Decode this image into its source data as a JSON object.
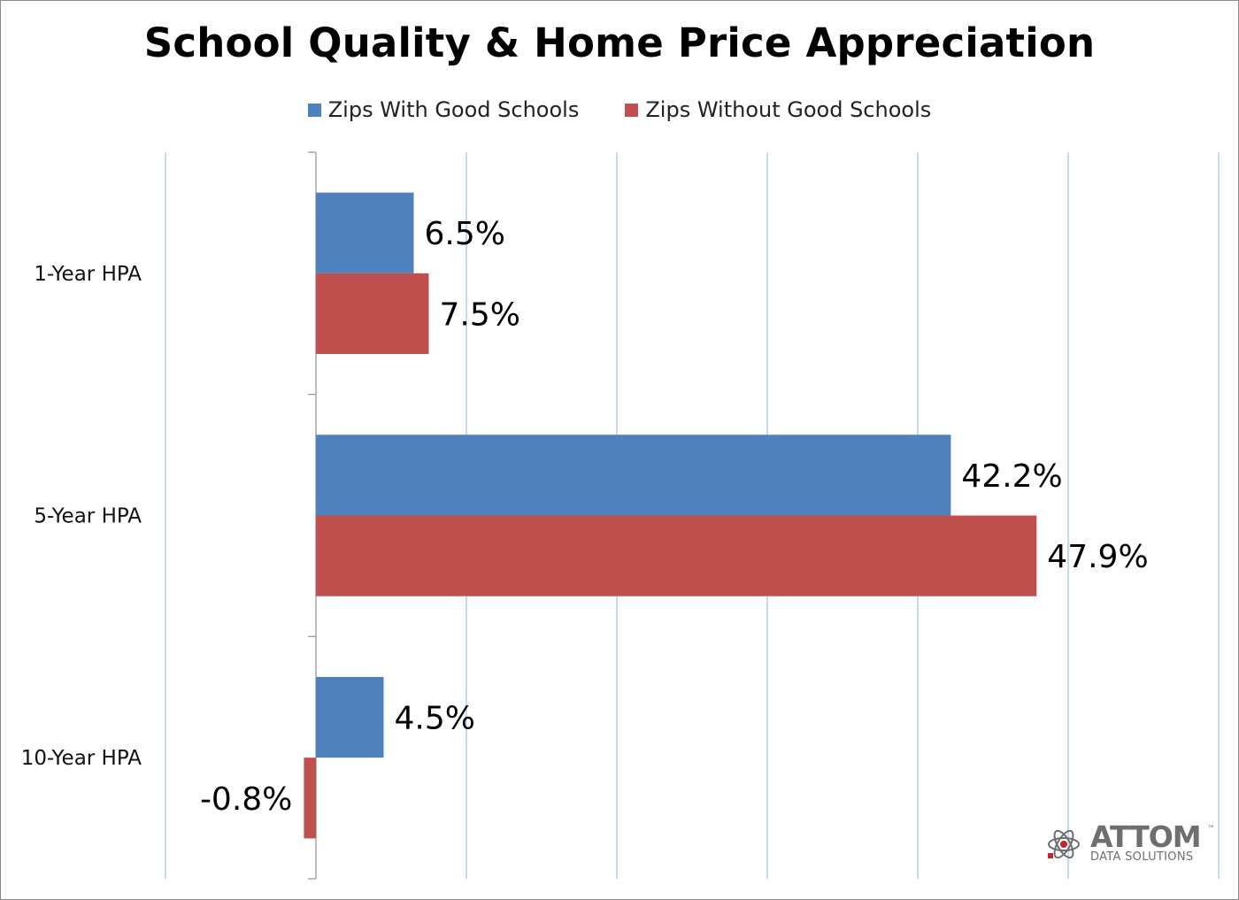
{
  "chart_data": {
    "type": "bar",
    "orientation": "horizontal",
    "title": "School Quality & Home Price Appreciation",
    "categories": [
      "1-Year HPA",
      "5-Year HPA",
      "10-Year HPA"
    ],
    "series": [
      {
        "name": "Zips With Good Schools",
        "color": "#4f81bd",
        "values": [
          6.5,
          42.2,
          4.5
        ],
        "labels": [
          "6.5%",
          "42.2%",
          "4.5%"
        ]
      },
      {
        "name": "Zips Without Good Schools",
        "color": "#c0504d",
        "values": [
          7.5,
          47.9,
          -0.8
        ],
        "labels": [
          "7.5%",
          "47.9%",
          "-0.8%"
        ]
      }
    ],
    "xlim": [
      -10,
      60
    ],
    "grid": true,
    "legend_position": "top"
  },
  "logo": {
    "brand": "ATTOM",
    "trademark": "™",
    "tagline": "DATA SOLUTIONS",
    "color": "#6d6e71",
    "accent": "#c0272d"
  }
}
